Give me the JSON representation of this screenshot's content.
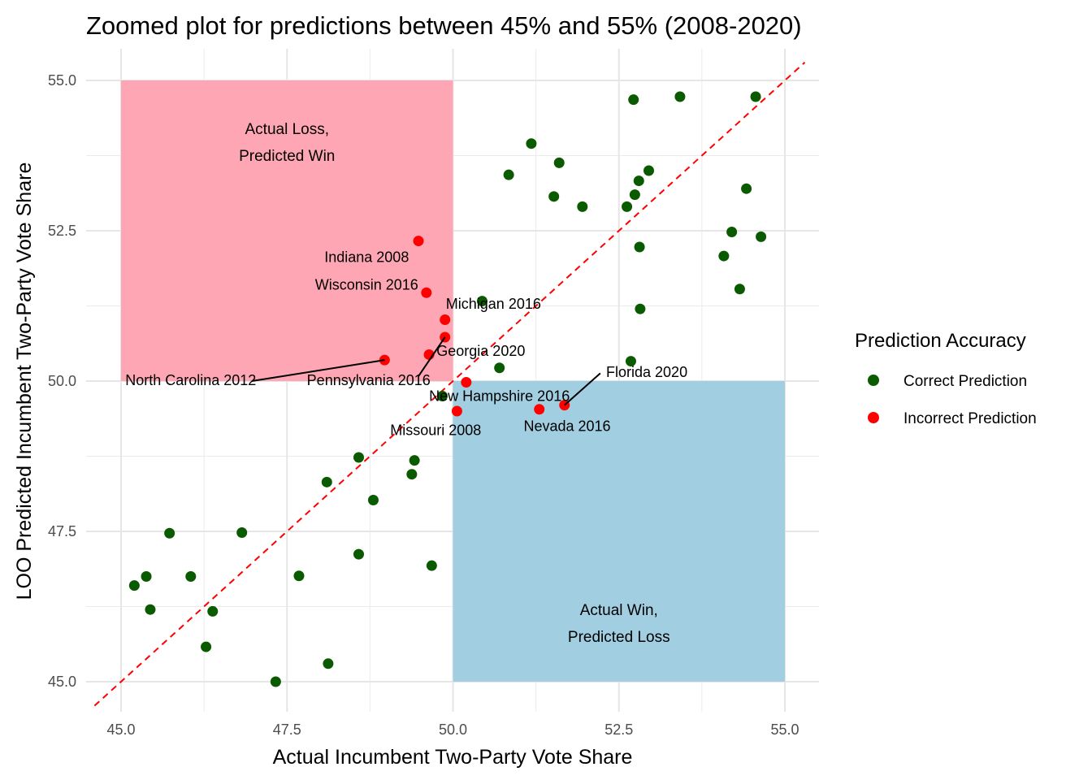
{
  "chart_data": {
    "type": "scatter",
    "title": "Zoomed plot for predictions between 45% and 55% (2008-2020)",
    "xlabel": "Actual Incumbent Two-Party Vote Share",
    "ylabel": "LOO Predicted Incumbent Two-Party Vote Share",
    "xlim": [
      44.6,
      55.3
    ],
    "ylim": [
      44.55,
      55.5
    ],
    "x_ticks": [
      "45.0",
      "47.5",
      "50.0",
      "52.5",
      "55.0"
    ],
    "y_ticks": [
      "45.0",
      "47.5",
      "50.0",
      "52.5",
      "55.0"
    ],
    "grid": true,
    "reference_line": {
      "type": "y = x",
      "style": "dashed",
      "color": "#ff0000"
    },
    "regions": [
      {
        "x": [
          45,
          50
        ],
        "y": [
          50,
          55
        ],
        "fill": "#ffa6b4",
        "label": [
          "Actual Loss,",
          "Predicted Win"
        ]
      },
      {
        "x": [
          50,
          55
        ],
        "y": [
          45,
          50
        ],
        "fill": "#a1cfe1",
        "label": [
          "Actual Win,",
          "Predicted Loss"
        ]
      }
    ],
    "legend": {
      "title": "Prediction Accuracy",
      "position": "right",
      "entries": [
        {
          "name": "Correct Prediction",
          "color": "#0a5a00"
        },
        {
          "name": "Incorrect Prediction",
          "color": "#ff0000"
        }
      ]
    },
    "series": [
      {
        "name": "Correct Prediction",
        "color": "#0a5a00",
        "points": [
          {
            "x": 45.2,
            "y": 46.6
          },
          {
            "x": 45.38,
            "y": 46.75
          },
          {
            "x": 45.44,
            "y": 46.2
          },
          {
            "x": 45.73,
            "y": 47.47
          },
          {
            "x": 46.05,
            "y": 46.75
          },
          {
            "x": 46.28,
            "y": 45.58
          },
          {
            "x": 46.38,
            "y": 46.17
          },
          {
            "x": 46.82,
            "y": 47.48
          },
          {
            "x": 47.33,
            "y": 45.0
          },
          {
            "x": 47.68,
            "y": 46.76
          },
          {
            "x": 48.1,
            "y": 48.32
          },
          {
            "x": 48.12,
            "y": 45.3
          },
          {
            "x": 48.58,
            "y": 48.73
          },
          {
            "x": 48.58,
            "y": 47.12
          },
          {
            "x": 48.8,
            "y": 48.02
          },
          {
            "x": 49.38,
            "y": 48.45
          },
          {
            "x": 49.42,
            "y": 48.68
          },
          {
            "x": 49.68,
            "y": 46.93
          },
          {
            "x": 49.84,
            "y": 49.75
          },
          {
            "x": 50.44,
            "y": 51.33
          },
          {
            "x": 50.7,
            "y": 50.22
          },
          {
            "x": 50.84,
            "y": 53.43
          },
          {
            "x": 51.18,
            "y": 53.95
          },
          {
            "x": 51.52,
            "y": 53.07
          },
          {
            "x": 51.6,
            "y": 53.63
          },
          {
            "x": 51.95,
            "y": 52.9
          },
          {
            "x": 52.62,
            "y": 52.9
          },
          {
            "x": 52.68,
            "y": 50.33
          },
          {
            "x": 52.72,
            "y": 54.68
          },
          {
            "x": 52.74,
            "y": 53.1
          },
          {
            "x": 52.8,
            "y": 53.33
          },
          {
            "x": 52.81,
            "y": 52.23
          },
          {
            "x": 52.82,
            "y": 51.2
          },
          {
            "x": 52.95,
            "y": 53.5
          },
          {
            "x": 53.42,
            "y": 54.73
          },
          {
            "x": 54.08,
            "y": 52.08
          },
          {
            "x": 54.2,
            "y": 52.48
          },
          {
            "x": 54.32,
            "y": 51.53
          },
          {
            "x": 54.42,
            "y": 53.2
          },
          {
            "x": 54.56,
            "y": 54.73
          },
          {
            "x": 54.64,
            "y": 52.4
          }
        ]
      },
      {
        "name": "Incorrect Prediction",
        "color": "#ff0000",
        "points": [
          {
            "x": 49.48,
            "y": 52.33,
            "label": "Indiana 2008"
          },
          {
            "x": 49.6,
            "y": 51.47,
            "label": "Wisconsin 2016"
          },
          {
            "x": 49.88,
            "y": 51.02,
            "label": "Michigan 2016"
          },
          {
            "x": 49.88,
            "y": 50.73
          },
          {
            "x": 49.64,
            "y": 50.44,
            "label": "Georgia 2020"
          },
          {
            "x": 48.97,
            "y": 50.35,
            "label": "North Carolina 2012"
          },
          {
            "x": 50.2,
            "y": 49.98,
            "label": "New Hampshire 2016"
          },
          {
            "x": 50.06,
            "y": 49.5,
            "label": "Missouri 2008"
          },
          {
            "x": 51.3,
            "y": 49.53,
            "label": "Nevada 2016"
          },
          {
            "x": 51.68,
            "y": 49.6,
            "label": "Florida 2020"
          }
        ]
      }
    ],
    "annotations": [
      {
        "text": "Indiana 2008",
        "x": 48.7,
        "y": 51.98,
        "anchor": "middle"
      },
      {
        "text": "Wisconsin 2016",
        "x": 48.7,
        "y": 51.52,
        "anchor": "middle"
      },
      {
        "text": "Michigan 2016",
        "x": 50.61,
        "y": 51.2,
        "anchor": "middle"
      },
      {
        "text": "Georgia 2020",
        "x": 50.42,
        "y": 50.42,
        "anchor": "middle"
      },
      {
        "text": "North Carolina 2012",
        "x": 46.05,
        "y": 49.93,
        "anchor": "middle",
        "leader": [
          [
            48.97,
            50.35
          ],
          [
            46.97,
            50.0
          ]
        ]
      },
      {
        "text": "Pennsylvania 2016",
        "x": 48.73,
        "y": 49.93,
        "anchor": "middle",
        "leader": [
          [
            49.88,
            50.73
          ],
          [
            49.48,
            50.08
          ]
        ]
      },
      {
        "text": "New Hampshire 2016",
        "x": 50.7,
        "y": 49.67,
        "anchor": "middle"
      },
      {
        "text": "Missouri 2008",
        "x": 49.74,
        "y": 49.1,
        "anchor": "middle"
      },
      {
        "text": "Nevada 2016",
        "x": 51.72,
        "y": 49.17,
        "anchor": "middle"
      },
      {
        "text": "Florida 2020",
        "x": 52.92,
        "y": 50.07,
        "anchor": "middle",
        "leader": [
          [
            51.68,
            49.6
          ],
          [
            52.22,
            50.13
          ]
        ]
      }
    ]
  }
}
